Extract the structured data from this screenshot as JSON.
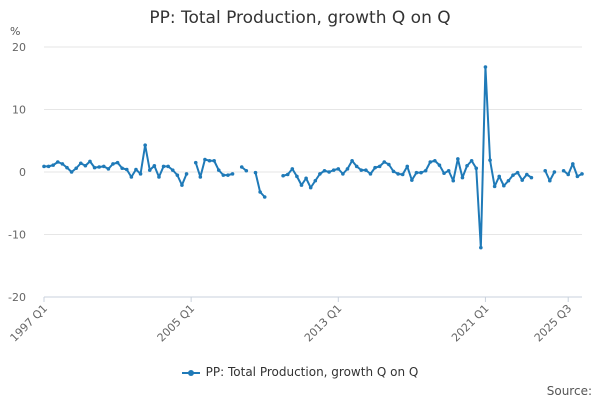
{
  "chart_data": {
    "type": "line",
    "title": "PP: Total Production, growth Q on Q",
    "ylabel": "%",
    "ylim": [
      -20,
      20
    ],
    "yticks": [
      20,
      10,
      0,
      -10,
      -20
    ],
    "xtick_labels": [
      "1997 Q1",
      "2005 Q1",
      "2013 Q1",
      "2021 Q1",
      "2025 Q3"
    ],
    "start_quarter": "1997 Q1",
    "grid": "horizontal",
    "legend_position": "bottom",
    "series": [
      {
        "name": "PP: Total Production, growth Q on Q",
        "color": "#1f7ab8",
        "values": [
          0.9,
          0.9,
          1.1,
          1.6,
          1.3,
          0.7,
          0.0,
          0.6,
          1.4,
          1.0,
          1.7,
          0.7,
          0.8,
          0.9,
          0.5,
          1.3,
          1.5,
          0.6,
          0.4,
          -0.8,
          0.4,
          -0.3,
          4.3,
          0.3,
          1.0,
          -0.8,
          0.9,
          0.9,
          0.3,
          -0.5,
          -2.1,
          -0.3,
          null,
          1.5,
          -0.8,
          2.0,
          1.8,
          1.8,
          0.3,
          -0.5,
          -0.5,
          -0.3,
          null,
          0.8,
          0.2,
          null,
          -0.1,
          -3.2,
          -4.0,
          null,
          null,
          null,
          -0.6,
          -0.4,
          0.5,
          -0.7,
          -2.1,
          -1.0,
          -2.5,
          -1.4,
          -0.3,
          0.2,
          0.0,
          0.3,
          0.5,
          -0.3,
          0.5,
          1.8,
          0.9,
          0.3,
          0.3,
          -0.3,
          0.7,
          0.9,
          1.6,
          1.2,
          0.1,
          -0.3,
          -0.4,
          0.9,
          -1.3,
          -0.1,
          -0.1,
          0.2,
          1.6,
          1.8,
          1.1,
          -0.2,
          0.2,
          -1.4,
          2.1,
          -0.9,
          1.0,
          1.8,
          0.6,
          -12.1,
          16.8,
          1.9,
          -2.3,
          -0.7,
          -2.2,
          -1.4,
          -0.5,
          -0.1,
          -1.3,
          -0.4,
          -0.9,
          null,
          null,
          0.2,
          -1.4,
          0.0,
          null,
          0.2,
          -0.4,
          1.3,
          -0.7,
          -0.3
        ]
      }
    ]
  },
  "source_label": "Source:"
}
